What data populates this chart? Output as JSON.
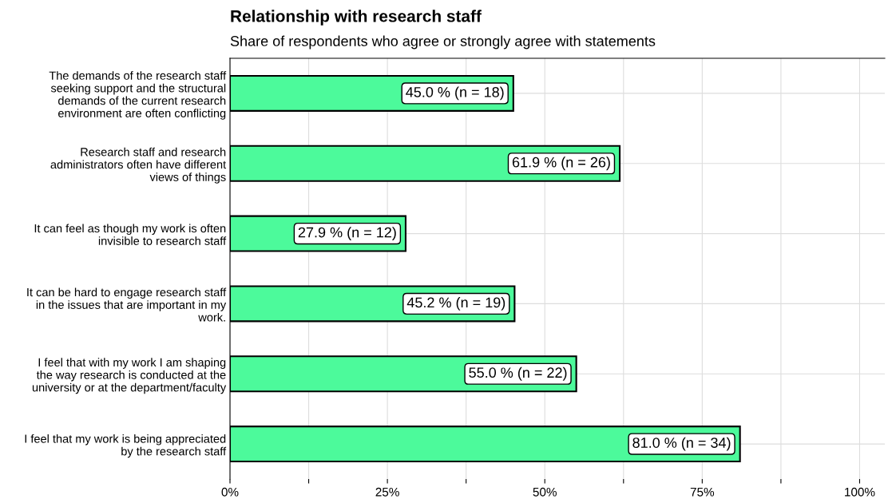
{
  "chart_data": {
    "type": "bar",
    "orientation": "horizontal",
    "title": "Relationship with research staff",
    "subtitle": "Share of respondents who agree or strongly agree with statements",
    "categories": [
      "The demands of the research staff\nseeking support and the structural\ndemands of the current research\nenvironment are often conflicting",
      "Research staff and research\nadministrators often have different\nviews of things",
      "It can feel as though my work is often\ninvisible to research staff",
      "It can be hard to engage research staff\nin the issues that are important in my\nwork.",
      "I feel that with my work I am shaping\nthe way research is conducted at the\nuniversity or at the department/faculty",
      "I feel that my work is being appreciated\nby the research staff"
    ],
    "values": [
      45.0,
      61.9,
      27.9,
      45.2,
      55.0,
      81.0
    ],
    "value_labels": [
      "45.0 % (n = 18)",
      "61.9 % (n = 26)",
      "27.9 % (n = 12)",
      "45.2 % (n = 19)",
      "55.0 % (n = 22)",
      "81.0 % (n = 34)"
    ],
    "color": "#4cfa9b",
    "xlim": [
      0,
      104
    ],
    "xticks": [
      {
        "value": 0,
        "label": "0%"
      },
      {
        "value": 12.5,
        "label": null
      },
      {
        "value": 25,
        "label": "25%"
      },
      {
        "value": 37.5,
        "label": null
      },
      {
        "value": 50,
        "label": "50%"
      },
      {
        "value": 62.5,
        "label": null
      },
      {
        "value": 75,
        "label": "75%"
      },
      {
        "value": 87.5,
        "label": null
      },
      {
        "value": 100,
        "label": "100%"
      }
    ],
    "grid": true
  }
}
